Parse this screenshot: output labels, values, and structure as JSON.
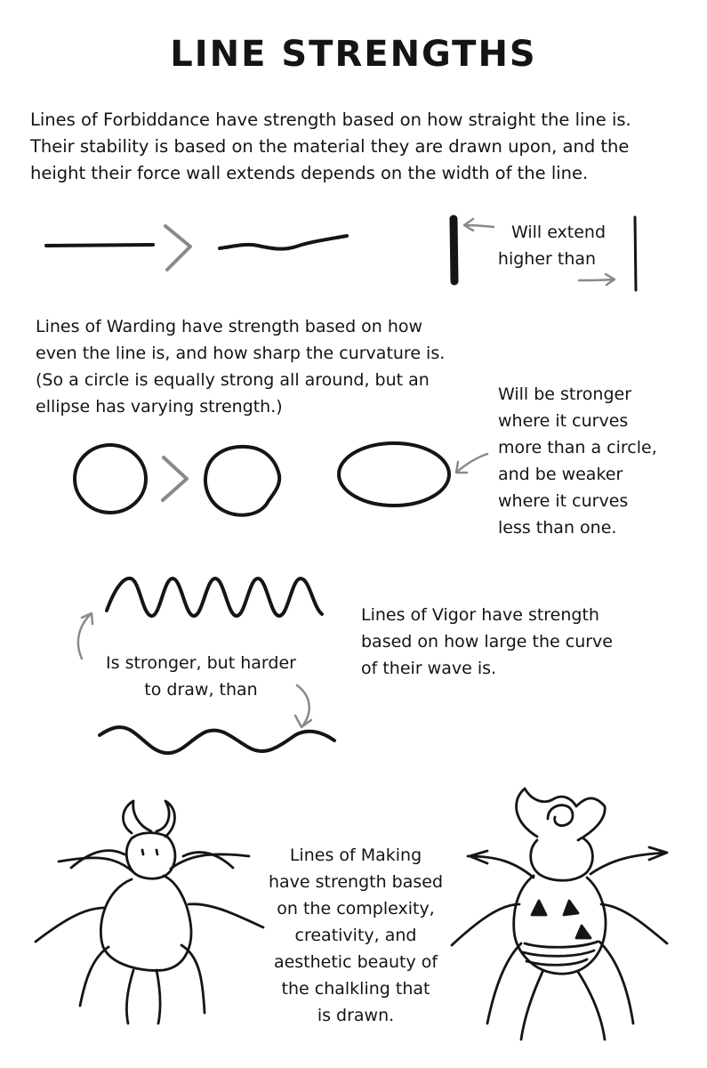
{
  "title": "LINE STRENGTHS",
  "forbiddance": {
    "text_lines": [
      "Lines of Forbiddance have strength based on how straight the line is.",
      "Their stability is based on the material they are drawn upon, and the",
      "height their force wall extends depends on the width of the line."
    ],
    "note_lines": [
      "Will extend",
      "higher than"
    ]
  },
  "warding": {
    "text_lines": [
      "Lines of Warding have strength based on how",
      "even the line is, and how sharp the curvature is.",
      "(So a circle is equally strong all around, but an",
      "ellipse has varying strength.)"
    ],
    "note_lines": [
      "Will be stronger",
      "where it curves",
      "more than a circle,",
      "and be weaker",
      "where it curves",
      "less than one."
    ]
  },
  "vigor": {
    "text_lines": [
      "Lines of Vigor have strength",
      "based on how large the curve",
      "of their wave is."
    ],
    "note_lines": [
      "Is stronger, but harder",
      "to draw, than"
    ]
  },
  "making": {
    "text_lines": [
      "Lines of Making",
      "have strength based",
      "on the complexity,",
      "creativity, and",
      "aesthetic beauty of",
      "the chalkling that",
      "is drawn."
    ]
  }
}
